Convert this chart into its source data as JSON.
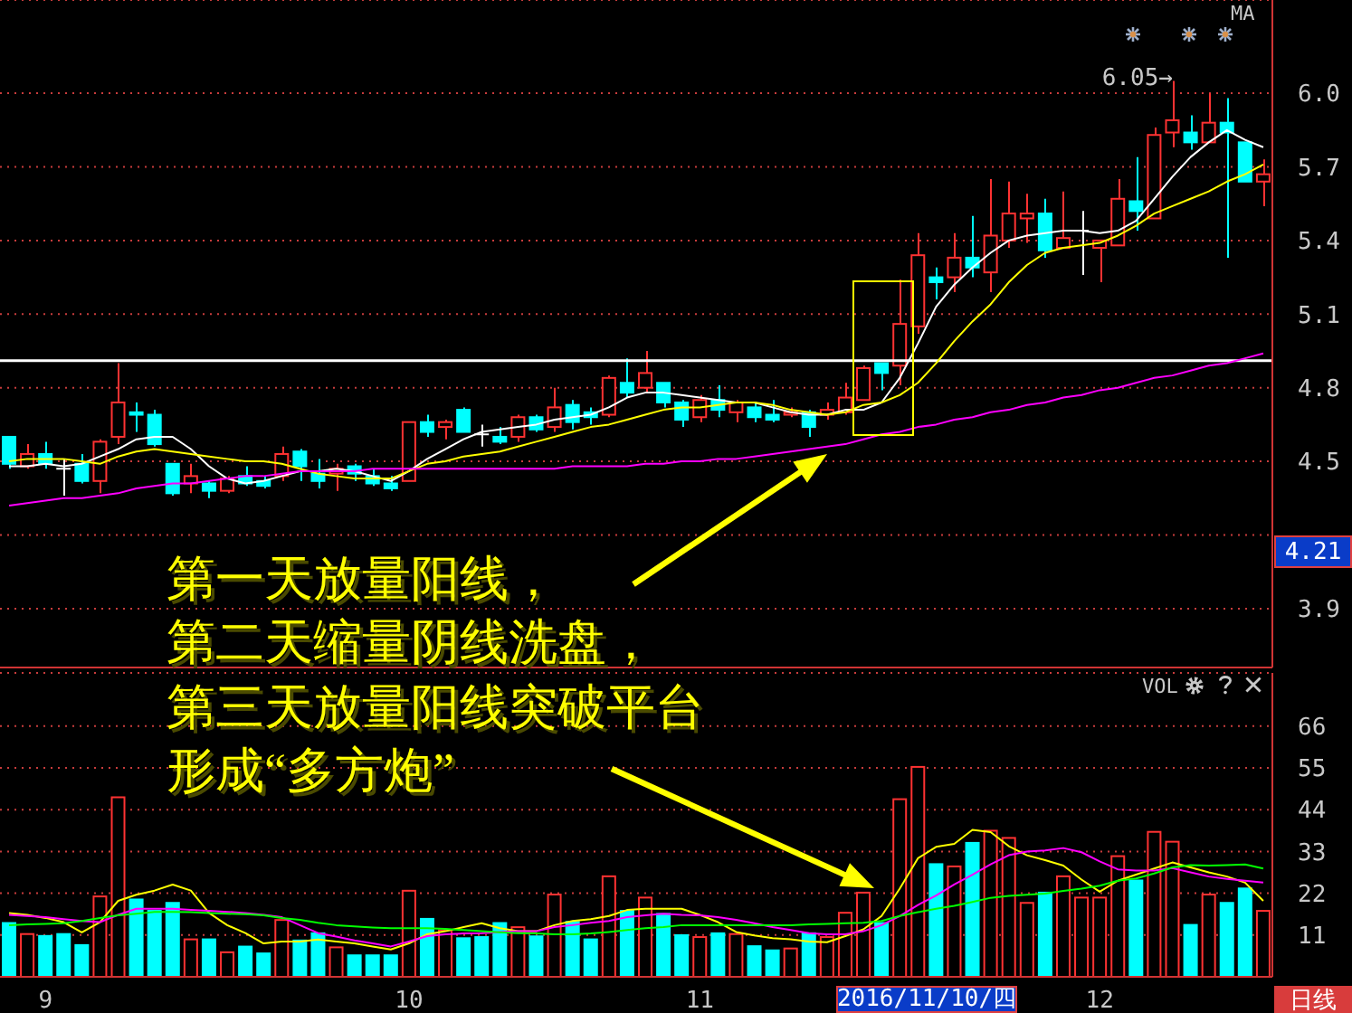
{
  "chart_data": [
    {
      "type": "candlestick",
      "categories": [
        null,
        null,
        "9",
        null,
        null,
        null,
        null,
        null,
        null,
        null,
        null,
        null,
        null,
        null,
        null,
        null,
        null,
        null,
        null,
        null,
        null,
        null,
        "10",
        null,
        null,
        null,
        null,
        null,
        null,
        null,
        null,
        null,
        null,
        null,
        null,
        null,
        null,
        null,
        "11",
        null,
        null,
        null,
        null,
        null,
        null,
        null,
        null,
        null,
        null,
        null,
        null,
        null,
        null,
        null,
        null,
        null,
        null,
        null,
        null,
        null,
        "12",
        null,
        null,
        null,
        null,
        null,
        null,
        null,
        null,
        null
      ],
      "ohlc": [
        [
          4.6,
          4.6,
          4.47,
          4.49
        ],
        [
          4.48,
          4.57,
          4.47,
          4.53
        ],
        [
          4.53,
          4.58,
          4.47,
          4.49
        ],
        [
          4.47,
          4.51,
          4.36,
          4.47
        ],
        [
          4.49,
          4.53,
          4.41,
          4.42
        ],
        [
          4.42,
          4.59,
          4.37,
          4.58
        ],
        [
          4.6,
          4.9,
          4.57,
          4.74
        ],
        [
          4.7,
          4.74,
          4.62,
          4.69
        ],
        [
          4.69,
          4.71,
          4.56,
          4.57
        ],
        [
          4.49,
          4.49,
          4.36,
          4.37
        ],
        [
          4.41,
          4.49,
          4.37,
          4.44
        ],
        [
          4.41,
          4.42,
          4.35,
          4.38
        ],
        [
          4.38,
          4.44,
          4.37,
          4.43
        ],
        [
          4.44,
          4.48,
          4.4,
          4.41
        ],
        [
          4.42,
          4.44,
          4.39,
          4.4
        ],
        [
          4.44,
          4.56,
          4.42,
          4.53
        ],
        [
          4.54,
          4.55,
          4.42,
          4.48
        ],
        [
          4.45,
          4.51,
          4.39,
          4.42
        ],
        [
          4.45,
          4.49,
          4.38,
          4.47
        ],
        [
          4.48,
          4.49,
          4.42,
          4.45
        ],
        [
          4.44,
          4.47,
          4.4,
          4.41
        ],
        [
          4.41,
          4.44,
          4.38,
          4.39
        ],
        [
          4.42,
          4.66,
          4.42,
          4.66
        ],
        [
          4.66,
          4.69,
          4.6,
          4.62
        ],
        [
          4.64,
          4.67,
          4.59,
          4.66
        ],
        [
          4.71,
          4.72,
          4.62,
          4.62
        ],
        [
          4.61,
          4.65,
          4.56,
          4.61
        ],
        [
          4.6,
          4.64,
          4.57,
          4.58
        ],
        [
          4.6,
          4.69,
          4.58,
          4.68
        ],
        [
          4.68,
          4.69,
          4.62,
          4.63
        ],
        [
          4.64,
          4.8,
          4.62,
          4.72
        ],
        [
          4.73,
          4.75,
          4.63,
          4.66
        ],
        [
          4.7,
          4.72,
          4.65,
          4.68
        ],
        [
          4.69,
          4.85,
          4.68,
          4.84
        ],
        [
          4.82,
          4.92,
          4.76,
          4.78
        ],
        [
          4.8,
          4.95,
          4.78,
          4.86
        ],
        [
          4.82,
          4.82,
          4.72,
          4.74
        ],
        [
          4.74,
          4.75,
          4.64,
          4.67
        ],
        [
          4.68,
          4.77,
          4.66,
          4.75
        ],
        [
          4.75,
          4.81,
          4.68,
          4.71
        ],
        [
          4.7,
          4.75,
          4.66,
          4.74
        ],
        [
          4.72,
          4.74,
          4.66,
          4.68
        ],
        [
          4.69,
          4.75,
          4.66,
          4.67
        ],
        [
          4.69,
          4.72,
          4.68,
          4.7
        ],
        [
          4.7,
          4.71,
          4.6,
          4.64
        ],
        [
          4.69,
          4.74,
          4.67,
          4.71
        ],
        [
          4.7,
          4.82,
          4.69,
          4.76
        ],
        [
          4.75,
          4.89,
          4.75,
          4.88
        ],
        [
          4.9,
          4.9,
          4.79,
          4.86
        ],
        [
          4.89,
          5.24,
          4.81,
          5.06
        ],
        [
          5.05,
          5.43,
          5.02,
          5.34
        ],
        [
          5.25,
          5.29,
          5.16,
          5.23
        ],
        [
          5.25,
          5.43,
          5.19,
          5.33
        ],
        [
          5.33,
          5.5,
          5.25,
          5.29
        ],
        [
          5.27,
          5.65,
          5.19,
          5.42
        ],
        [
          5.4,
          5.64,
          5.37,
          5.51
        ],
        [
          5.49,
          5.59,
          5.39,
          5.51
        ],
        [
          5.51,
          5.57,
          5.33,
          5.36
        ],
        [
          5.37,
          5.6,
          5.37,
          5.41
        ],
        [
          5.44,
          5.52,
          5.26,
          5.44
        ],
        [
          5.37,
          5.4,
          5.23,
          5.4
        ],
        [
          5.38,
          5.65,
          5.38,
          5.57
        ],
        [
          5.56,
          5.74,
          5.44,
          5.52
        ],
        [
          5.49,
          5.86,
          5.49,
          5.83
        ],
        [
          5.84,
          6.05,
          5.78,
          5.89
        ],
        [
          5.84,
          5.91,
          5.77,
          5.8
        ],
        [
          5.8,
          6.0,
          5.8,
          5.88
        ],
        [
          5.88,
          5.98,
          5.33,
          5.84
        ],
        [
          5.8,
          5.8,
          5.64,
          5.64
        ],
        [
          5.64,
          5.73,
          5.54,
          5.67
        ]
      ],
      "colors": [
        "#00ffff",
        "#ff3232",
        "#00ffff",
        "#ffffff",
        "#00ffff",
        "#ff3232",
        "#ff3232",
        "#00ffff",
        "#00ffff",
        "#00ffff",
        "#ff3232",
        "#00ffff",
        "#ff3232",
        "#00ffff",
        "#00ffff",
        "#ff3232",
        "#00ffff",
        "#00ffff",
        "#ff3232",
        "#00ffff",
        "#00ffff",
        "#00ffff",
        "#ff3232",
        "#00ffff",
        "#ff3232",
        "#00ffff",
        "#ffffff",
        "#00ffff",
        "#ff3232",
        "#00ffff",
        "#ff3232",
        "#00ffff",
        "#00ffff",
        "#ff3232",
        "#00ffff",
        "#ff3232",
        "#00ffff",
        "#00ffff",
        "#ff3232",
        "#00ffff",
        "#ff3232",
        "#00ffff",
        "#00ffff",
        "#ff3232",
        "#00ffff",
        "#ff3232",
        "#ff3232",
        "#ff3232",
        "#00ffff",
        "#ff3232",
        "#ff3232",
        "#00ffff",
        "#ff3232",
        "#00ffff",
        "#ff3232",
        "#ff3232",
        "#ff3232",
        "#00ffff",
        "#ff3232",
        "#ffffff",
        "#ff3232",
        "#ff3232",
        "#00ffff",
        "#ff3232",
        "#ff3232",
        "#00ffff",
        "#ff3232",
        "#00ffff",
        "#00ffff",
        "#ff3232"
      ],
      "series": [
        {
          "type": "line",
          "color": "#ffffff",
          "values": [
            4.48,
            4.48,
            4.49,
            4.48,
            4.49,
            4.52,
            4.55,
            4.59,
            4.6,
            4.6,
            4.55,
            4.48,
            4.43,
            4.41,
            4.42,
            4.44,
            4.46,
            4.46,
            4.47,
            4.46,
            4.44,
            4.42,
            4.46,
            4.51,
            4.55,
            4.59,
            4.62,
            4.63,
            4.64,
            4.65,
            4.67,
            4.68,
            4.69,
            4.72,
            4.76,
            4.78,
            4.78,
            4.77,
            4.76,
            4.75,
            4.74,
            4.74,
            4.72,
            4.7,
            4.69,
            4.69,
            4.71,
            4.71,
            4.74,
            4.84,
            4.98,
            5.13,
            5.22,
            5.29,
            5.35,
            5.4,
            5.42,
            5.43,
            5.44,
            5.44,
            5.43,
            5.44,
            5.48,
            5.57,
            5.66,
            5.74,
            5.8,
            5.85,
            5.81,
            5.78
          ]
        },
        {
          "type": "line",
          "color": "#ffff00",
          "values": [
            4.5,
            4.51,
            4.51,
            4.51,
            4.5,
            4.49,
            4.52,
            4.54,
            4.55,
            4.54,
            4.53,
            4.52,
            4.51,
            4.5,
            4.5,
            4.49,
            4.47,
            4.45,
            4.44,
            4.43,
            4.43,
            4.43,
            4.46,
            4.49,
            4.5,
            4.52,
            4.53,
            4.54,
            4.56,
            4.58,
            4.6,
            4.62,
            4.64,
            4.65,
            4.67,
            4.69,
            4.71,
            4.72,
            4.72,
            4.73,
            4.74,
            4.74,
            4.73,
            4.71,
            4.7,
            4.69,
            4.7,
            4.73,
            4.74,
            4.77,
            4.82,
            4.9,
            4.99,
            5.07,
            5.14,
            5.23,
            5.3,
            5.35,
            5.37,
            5.38,
            5.39,
            5.42,
            5.46,
            5.51,
            5.54,
            5.57,
            5.6,
            5.64,
            5.67,
            5.71
          ]
        },
        {
          "type": "line",
          "color": "#ff00ff",
          "values": [
            4.32,
            4.33,
            4.34,
            4.35,
            4.35,
            4.36,
            4.37,
            4.39,
            4.4,
            4.41,
            4.41,
            4.42,
            4.43,
            4.44,
            4.44,
            4.45,
            4.46,
            4.46,
            4.46,
            4.46,
            4.47,
            4.47,
            4.47,
            4.47,
            4.47,
            4.47,
            4.47,
            4.47,
            4.47,
            4.47,
            4.47,
            4.48,
            4.48,
            4.48,
            4.48,
            4.49,
            4.49,
            4.5,
            4.5,
            4.51,
            4.51,
            4.52,
            4.53,
            4.54,
            4.55,
            4.56,
            4.57,
            4.59,
            4.61,
            4.62,
            4.64,
            4.65,
            4.67,
            4.68,
            4.7,
            4.71,
            4.73,
            4.74,
            4.76,
            4.77,
            4.79,
            4.8,
            4.82,
            4.84,
            4.85,
            4.87,
            4.89,
            4.9,
            4.92,
            4.94
          ]
        }
      ],
      "ylim": [
        3.66,
        6.38
      ],
      "yticks": [
        {
          "value": 6,
          "label": "6.0"
        },
        5.7,
        5.4,
        5.1,
        4.8,
        4.5,
        {
          "value": 4.2,
          "label": null
        },
        3.9
      ],
      "grid": "y",
      "tick_labels": "y",
      "ref_lines": [
        {
          "axis": "y",
          "value": 4.91,
          "color": "#ffffff"
        }
      ],
      "annotations": [
        "MA",
        "6.05→",
        "4.21",
        "第一天放量阳线，",
        "第二天缩量阴线洗盘，"
      ]
    },
    {
      "type": "bar",
      "categories": [
        null,
        null,
        "9",
        null,
        null,
        null,
        null,
        null,
        null,
        null,
        null,
        null,
        null,
        null,
        null,
        null,
        null,
        null,
        null,
        null,
        null,
        null,
        "10",
        null,
        null,
        null,
        null,
        null,
        null,
        null,
        null,
        null,
        null,
        null,
        null,
        null,
        null,
        null,
        "11",
        null,
        null,
        null,
        null,
        null,
        null,
        null,
        null,
        null,
        null,
        null,
        null,
        null,
        null,
        null,
        null,
        null,
        null,
        null,
        null,
        null,
        "12",
        null,
        null,
        null,
        null,
        null,
        null,
        null,
        null,
        null
      ],
      "series": [
        {
          "type": "bar",
          "colors": [
            "#00ffff",
            "#ff3232",
            "#00ffff",
            "#00ffff",
            "#00ffff",
            "#ff3232",
            "#ff3232",
            "#00ffff",
            "#00ffff",
            "#00ffff",
            "#ff3232",
            "#00ffff",
            "#ff3232",
            "#00ffff",
            "#00ffff",
            "#ff3232",
            "#00ffff",
            "#00ffff",
            "#ff3232",
            "#00ffff",
            "#00ffff",
            "#00ffff",
            "#ff3232",
            "#00ffff",
            "#ff3232",
            "#00ffff",
            "#00ffff",
            "#00ffff",
            "#ff3232",
            "#00ffff",
            "#ff3232",
            "#00ffff",
            "#00ffff",
            "#ff3232",
            "#00ffff",
            "#ff3232",
            "#00ffff",
            "#00ffff",
            "#ff3232",
            "#00ffff",
            "#ff3232",
            "#00ffff",
            "#00ffff",
            "#ff3232",
            "#00ffff",
            "#ff3232",
            "#ff3232",
            "#ff3232",
            "#00ffff",
            "#ff3232",
            "#ff3232",
            "#00ffff",
            "#ff3232",
            "#00ffff",
            "#ff3232",
            "#ff3232",
            "#ff3232",
            "#00ffff",
            "#ff3232",
            "#ff3232",
            "#ff3232",
            "#ff3232",
            "#00ffff",
            "#ff3232",
            "#ff3232",
            "#00ffff",
            "#ff3232",
            "#00ffff",
            "#00ffff",
            "#ff3232"
          ],
          "values": [
            14.4,
            11.5,
            11.0,
            11.5,
            8.6,
            21.4,
            47.5,
            20.6,
            17.6,
            19.7,
            10.1,
            10.1,
            6.7,
            8.2,
            6.4,
            15.2,
            9.8,
            11.7,
            8.0,
            5.9,
            5.9,
            5.9,
            22.9,
            15.5,
            12.5,
            10.4,
            10.7,
            14.4,
            13.3,
            10.9,
            21.9,
            14.7,
            10.1,
            26.7,
            17.6,
            21.1,
            16.8,
            11.2,
            10.7,
            11.7,
            11.5,
            8.3,
            7.2,
            7.7,
            11.7,
            10.7,
            17.1,
            22.4,
            14.4,
            47.0,
            55.5,
            29.9,
            29.3,
            35.5,
            38.7,
            36.8,
            19.7,
            22.4,
            26.7,
            21.1,
            21.1,
            32.0,
            25.6,
            38.4,
            35.8,
            13.9,
            21.9,
            19.7,
            23.5,
            17.6
          ]
        },
        {
          "type": "line",
          "color": "#ffff00",
          "values": [
            16.8,
            16.3,
            15.5,
            14.4,
            11.7,
            14.4,
            20.0,
            21.6,
            22.7,
            24.3,
            22.7,
            16.8,
            13.6,
            11.5,
            8.8,
            9.3,
            9.3,
            9.8,
            9.3,
            8.8,
            8.0,
            7.2,
            8.8,
            11.2,
            12.0,
            13.1,
            14.1,
            12.8,
            12.0,
            12.0,
            13.6,
            14.7,
            15.2,
            16.0,
            17.6,
            17.9,
            17.9,
            17.9,
            16.3,
            14.4,
            11.8,
            10.9,
            10.2,
            9.9,
            9.3,
            9.1,
            10.7,
            12.5,
            16.0,
            23.2,
            31.2,
            34.2,
            35.0,
            38.7,
            38.1,
            34.4,
            32.0,
            30.7,
            29.3,
            25.6,
            22.4,
            25.3,
            26.9,
            28.5,
            30.1,
            28.8,
            27.5,
            26.4,
            24.8,
            20.0
          ]
        },
        {
          "type": "line",
          "color": "#ff00ff",
          "values": [
            16.3,
            16.0,
            15.7,
            15.2,
            14.7,
            14.4,
            16.3,
            17.9,
            17.9,
            17.9,
            17.6,
            17.4,
            17.1,
            16.8,
            16.3,
            15.7,
            13.6,
            11.5,
            10.6,
            9.6,
            8.8,
            8.0,
            9.3,
            10.7,
            11.2,
            11.4,
            11.5,
            11.8,
            12.0,
            12.0,
            13.1,
            13.6,
            14.2,
            14.7,
            15.7,
            16.2,
            16.6,
            16.3,
            16.2,
            15.7,
            15.0,
            14.1,
            13.1,
            12.3,
            11.5,
            11.2,
            11.2,
            12.0,
            13.6,
            16.0,
            18.9,
            21.4,
            24.3,
            26.9,
            29.6,
            32.0,
            33.0,
            33.3,
            33.9,
            32.8,
            30.4,
            28.3,
            28.0,
            28.0,
            28.6,
            27.5,
            26.4,
            25.8,
            25.3,
            24.8
          ]
        },
        {
          "type": "line",
          "color": "#00ff00",
          "values": [
            13.6,
            13.8,
            13.9,
            14.1,
            14.7,
            15.5,
            16.2,
            16.6,
            17.1,
            17.1,
            17.0,
            16.8,
            16.6,
            16.5,
            16.2,
            15.5,
            15.0,
            14.2,
            13.6,
            13.3,
            13.0,
            12.8,
            12.8,
            12.8,
            12.6,
            12.3,
            12.0,
            11.7,
            11.5,
            11.4,
            11.2,
            11.2,
            11.4,
            11.8,
            12.3,
            12.8,
            13.1,
            13.6,
            13.6,
            13.6,
            13.6,
            13.6,
            13.6,
            13.6,
            13.8,
            13.9,
            14.1,
            14.2,
            14.7,
            16.0,
            17.0,
            17.9,
            18.7,
            19.7,
            20.8,
            21.3,
            21.6,
            21.9,
            22.6,
            23.2,
            24.0,
            25.3,
            25.9,
            27.2,
            28.8,
            29.4,
            29.3,
            29.4,
            29.6,
            28.5
          ]
        }
      ],
      "ylim": [
        0,
        80
      ],
      "yticks": [
        11,
        22,
        33,
        44,
        55,
        66
      ],
      "grid": "y",
      "annotations": [
        "第三天放量阳线突破平台",
        "形成“多方炮”",
        "VOL",
        "2016/11/10/四",
        "日线"
      ]
    }
  ]
}
